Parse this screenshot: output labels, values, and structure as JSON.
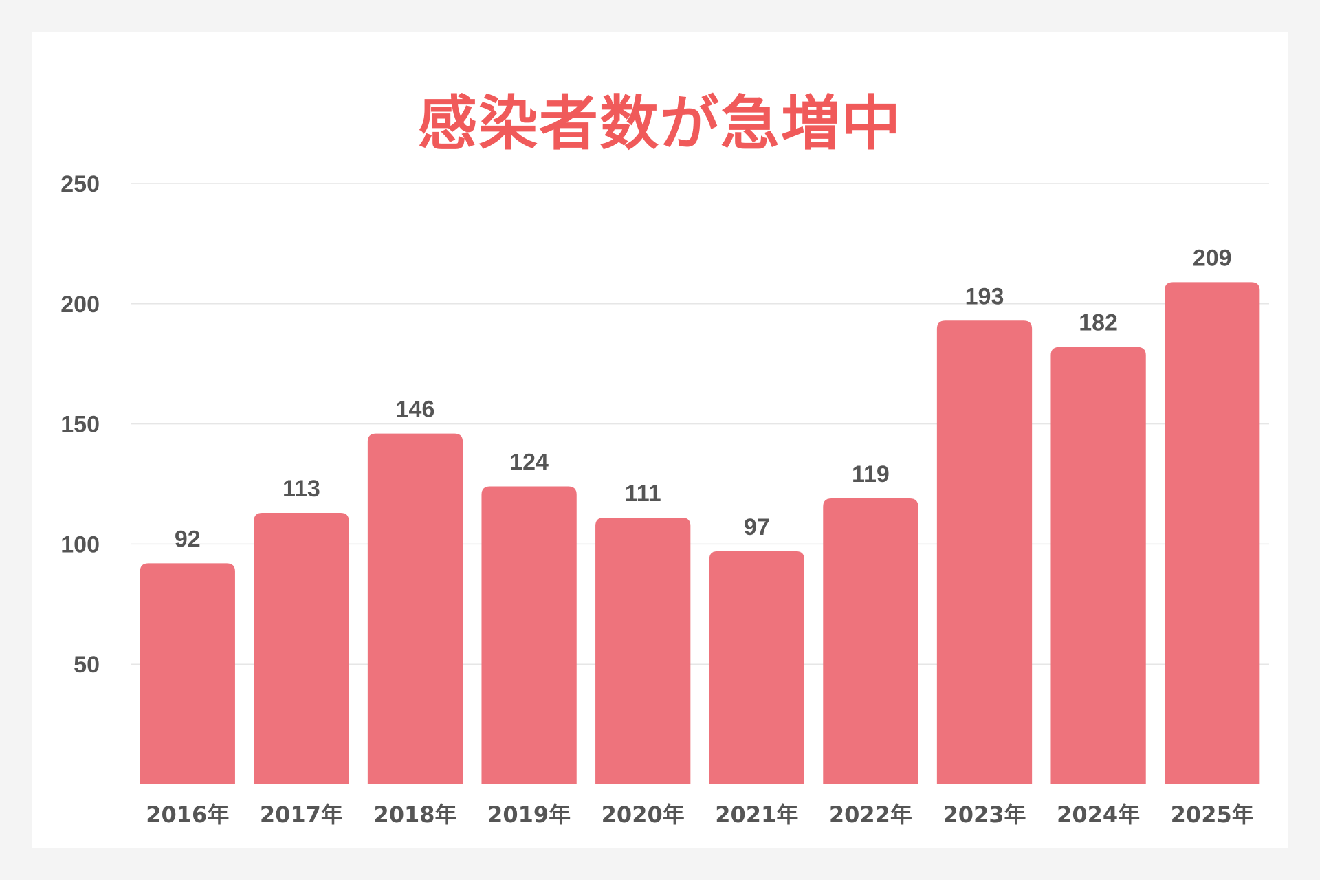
{
  "title": "感染者数が急増中",
  "colors": {
    "background": "#f4f4f4",
    "card": "#ffffff",
    "title": "#f05a5a",
    "bar": "#ee737c",
    "text": "#555555",
    "grid": "#e6e6e6"
  },
  "chart_data": {
    "type": "bar",
    "title": "感染者数が急増中",
    "xlabel": "",
    "ylabel": "",
    "categories": [
      "2016年",
      "2017年",
      "2018年",
      "2019年",
      "2020年",
      "2021年",
      "2022年",
      "2023年",
      "2024年",
      "2025年"
    ],
    "values": [
      92,
      113,
      146,
      124,
      111,
      97,
      119,
      193,
      182,
      209
    ],
    "ylim": [
      0,
      250
    ],
    "yticks": [
      50,
      100,
      150,
      200,
      250
    ],
    "grid": true,
    "legend": "none",
    "data_labels": true
  }
}
